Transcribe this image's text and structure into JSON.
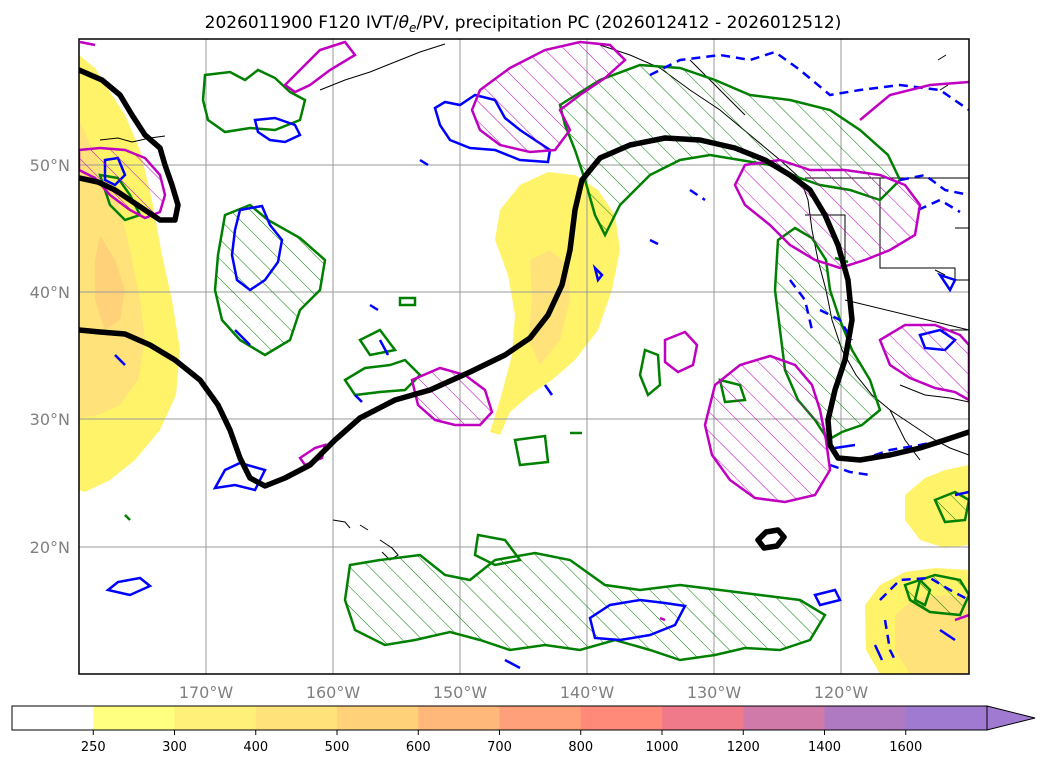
{
  "figure": {
    "title_prefix": "2026011900 F120 IVT/",
    "title_theta": "θ",
    "title_sub": "e",
    "title_suffix": "/PV, precipitation PC (2026012412 - 2026012512)"
  },
  "map": {
    "lat_labels": [
      "50°N",
      "40°N",
      "30°N",
      "20°N"
    ],
    "lon_labels": [
      "170°W",
      "160°W",
      "150°W",
      "140°W",
      "130°W",
      "120°W"
    ]
  },
  "colorbar": {
    "tick_labels": [
      "250",
      "300",
      "400",
      "500",
      "600",
      "700",
      "800",
      "1000",
      "1200",
      "1400",
      "1600"
    ],
    "colors": [
      "#ffffff",
      "#ffff80",
      "#fff07a",
      "#ffe27a",
      "#ffd27a",
      "#ffb87a",
      "#ffa07a",
      "#ff8a7a",
      "#f07a8a",
      "#d07aaa",
      "#b07ac2",
      "#a07ad0"
    ]
  },
  "legend_colors": {
    "ivt_fill": "#fff36a",
    "ivt_core": "#ffd27a",
    "pv_contour": "#000000",
    "green_contour": "#008000",
    "blue_contour": "#0000ff",
    "magenta_contour": "#c000c0"
  }
}
